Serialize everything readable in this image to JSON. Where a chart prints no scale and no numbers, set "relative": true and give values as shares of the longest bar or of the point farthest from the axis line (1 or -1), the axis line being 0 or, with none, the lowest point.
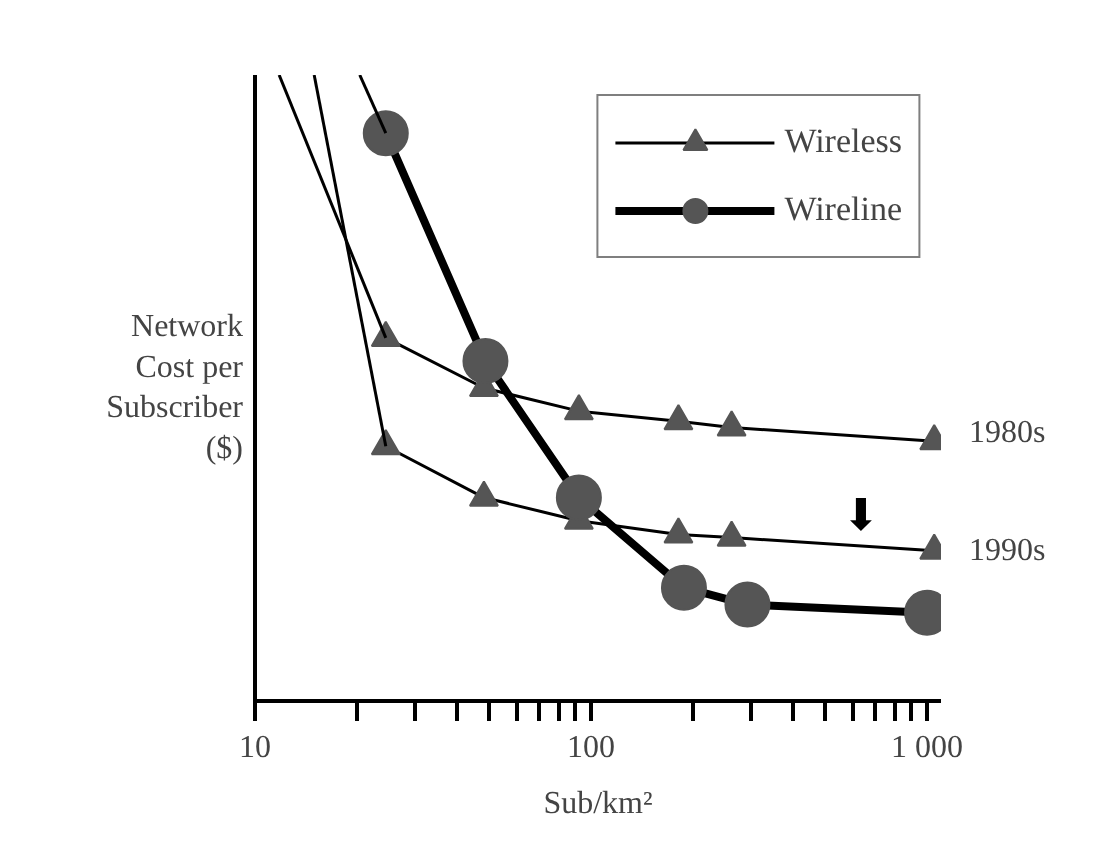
{
  "chart_data": {
    "type": "line",
    "xlabel": "Sub/km²",
    "ylabel": "Network\nCost per\nSubscriber\n($)",
    "relative": true,
    "log": "x",
    "grid": false,
    "legend": "top right",
    "xlim": [
      10,
      1100
    ],
    "xticks": [
      10,
      {
        "value": 20,
        "label": null
      },
      {
        "value": 30,
        "label": null
      },
      {
        "value": 40,
        "label": null
      },
      {
        "value": 50,
        "label": null
      },
      {
        "value": 60,
        "label": null
      },
      {
        "value": 70,
        "label": null
      },
      {
        "value": 80,
        "label": null
      },
      {
        "value": 90,
        "label": null
      },
      100,
      {
        "value": 200,
        "label": null
      },
      {
        "value": 300,
        "label": null
      },
      {
        "value": 400,
        "label": null
      },
      {
        "value": 500,
        "label": null
      },
      {
        "value": 600,
        "label": null
      },
      {
        "value": 700,
        "label": null
      },
      {
        "value": 800,
        "label": null
      },
      {
        "value": 900,
        "label": null
      },
      {
        "value": 1000,
        "label": "1 000"
      }
    ],
    "series": [
      {
        "name": "Wireless",
        "color": "#555555",
        "marker": "triangle",
        "x": [
          24.5,
          48,
          92,
          182,
          262,
          1050
        ],
        "values": [
          0.58,
          0.5,
          0.463,
          0.447,
          0.437,
          0.415
        ]
      },
      {
        "color": "#555555",
        "marker": "triangle",
        "x": [
          24.5,
          48,
          92,
          182,
          262,
          1050
        ],
        "values": [
          0.407,
          0.325,
          0.288,
          0.266,
          0.261,
          0.24
        ]
      },
      {
        "name": "Wireline",
        "color": "#555555",
        "marker": "circle",
        "x": [
          24.5,
          48.5,
          92,
          189,
          292,
          1000
        ],
        "values": [
          0.907,
          0.543,
          0.325,
          0.181,
          0.154,
          0.141
        ]
      },
      {
        "color": "#000000",
        "marker": "none",
        "x": [
          11.8,
          24.5
        ],
        "values": [
          1.0,
          0.58
        ]
      },
      {
        "color": "#000000",
        "marker": "none",
        "x": [
          15.0,
          24.5
        ],
        "values": [
          1.0,
          0.407
        ]
      },
      {
        "color": "#000000",
        "marker": "none",
        "x": [
          20.5,
          24.5
        ],
        "values": [
          1.0,
          0.907
        ]
      }
    ],
    "annotations": [
      "1980s",
      "1990s",
      "⬇"
    ]
  }
}
